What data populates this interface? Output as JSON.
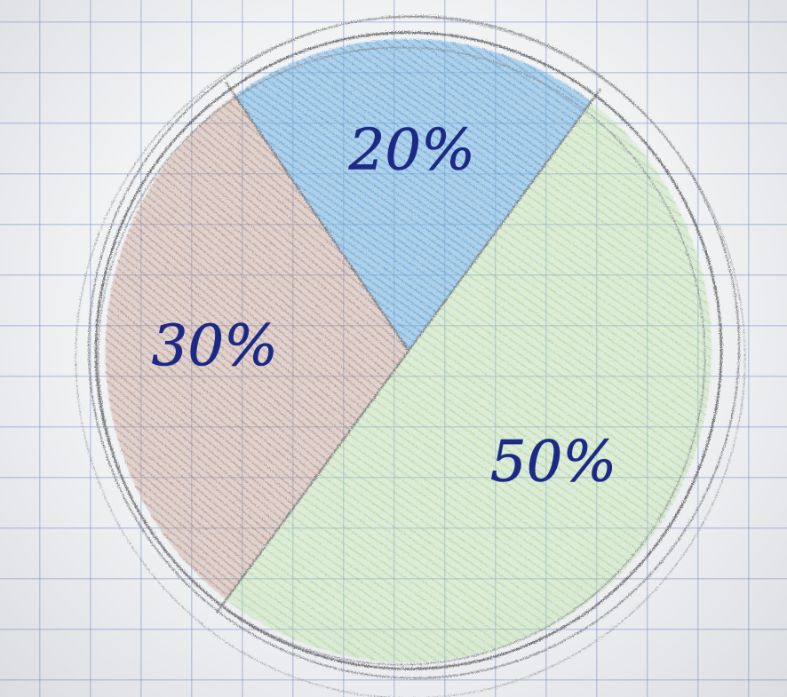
{
  "chart_data": {
    "type": "pie",
    "slices": [
      {
        "label": "20%",
        "value": 20,
        "color": "#7ab6e0"
      },
      {
        "label": "50%",
        "value": 50,
        "color": "#b7dea4"
      },
      {
        "label": "30%",
        "value": 30,
        "color": "#bf9a8d"
      }
    ],
    "title": "",
    "legend": "none",
    "style": "hand-drawn pencil on grid paper"
  }
}
